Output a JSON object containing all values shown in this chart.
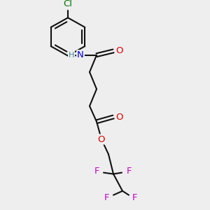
{
  "bg_color": "#eeeeee",
  "bond_color": "#111111",
  "F_color": "#cc00cc",
  "O_color": "#dd0000",
  "N_color": "#0000dd",
  "Cl_color": "#007700",
  "H_color": "#448888",
  "lw": 1.5,
  "fs": 9.5,
  "figsize": [
    3.0,
    3.0
  ],
  "dpi": 100,
  "xlim": [
    0,
    300
  ],
  "ylim": [
    300,
    0
  ],
  "ring_r": 28
}
